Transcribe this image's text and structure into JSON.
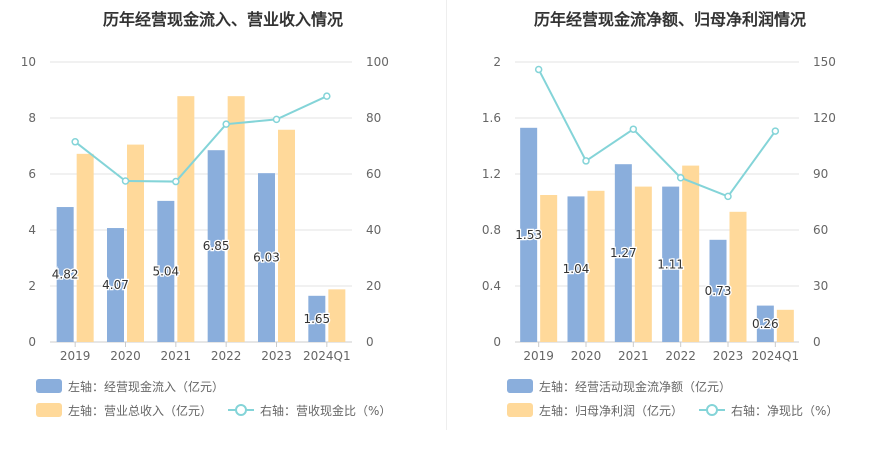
{
  "colors": {
    "inflow": "#8aaedc",
    "revenue": "#ffd99a",
    "ratio": "#84d4d8"
  },
  "chart_data": [
    {
      "type": "bar",
      "title": "历年经营现金流入、营业收入情况",
      "categories": [
        "2019",
        "2020",
        "2021",
        "2022",
        "2023",
        "2024Q1"
      ],
      "left_axis": {
        "min": 0,
        "max": 10,
        "ticks": [
          "0",
          "2",
          "4",
          "6",
          "8",
          "10"
        ]
      },
      "right_axis": {
        "min": 0,
        "max": 100,
        "ticks": [
          "0",
          "20",
          "40",
          "60",
          "80",
          "100"
        ]
      },
      "series": [
        {
          "name": "左轴：经营现金流入（亿元）",
          "type": "bar",
          "axis": "left",
          "color": "#8aaedc",
          "values": [
            4.82,
            4.07,
            5.04,
            6.85,
            6.03,
            1.65
          ],
          "labels": [
            "4.82",
            "4.07",
            "5.04",
            "6.85",
            "6.03",
            "1.65"
          ]
        },
        {
          "name": "左轴：营业总收入（亿元）",
          "type": "bar",
          "axis": "left",
          "color": "#ffd99a",
          "values": [
            6.72,
            7.05,
            8.78,
            8.78,
            7.58,
            1.88
          ]
        },
        {
          "name": "右轴：营收现金比（%）",
          "type": "line",
          "axis": "right",
          "color": "#84d4d8",
          "values": [
            71.5,
            57.5,
            57.3,
            77.8,
            79.5,
            87.8
          ]
        }
      ],
      "legend": {
        "placement": "bottom-left"
      },
      "grid": true
    },
    {
      "type": "bar",
      "title": "历年经营现金流净额、归母净利润情况",
      "categories": [
        "2019",
        "2020",
        "2021",
        "2022",
        "2023",
        "2024Q1"
      ],
      "left_axis": {
        "min": 0,
        "max": 2,
        "ticks": [
          "0",
          "0.4",
          "0.8",
          "1.2",
          "1.6",
          "2"
        ]
      },
      "right_axis": {
        "min": 0,
        "max": 150,
        "ticks": [
          "0",
          "30",
          "60",
          "90",
          "120",
          "150"
        ]
      },
      "series": [
        {
          "name": "左轴：经营活动现金流净额（亿元）",
          "type": "bar",
          "axis": "left",
          "color": "#8aaedc",
          "values": [
            1.53,
            1.04,
            1.27,
            1.11,
            0.73,
            0.26
          ],
          "labels": [
            "1.53",
            "1.04",
            "1.27",
            "1.11",
            "0.73",
            "0.26"
          ]
        },
        {
          "name": "左轴：归母净利润（亿元）",
          "type": "bar",
          "axis": "left",
          "color": "#ffd99a",
          "values": [
            1.05,
            1.08,
            1.11,
            1.26,
            0.93,
            0.23
          ]
        },
        {
          "name": "右轴：净现比（%）",
          "type": "line",
          "axis": "right",
          "color": "#84d4d8",
          "values": [
            146,
            97,
            114,
            88,
            78,
            113
          ]
        }
      ],
      "legend": {
        "placement": "bottom-left"
      },
      "grid": true
    }
  ]
}
